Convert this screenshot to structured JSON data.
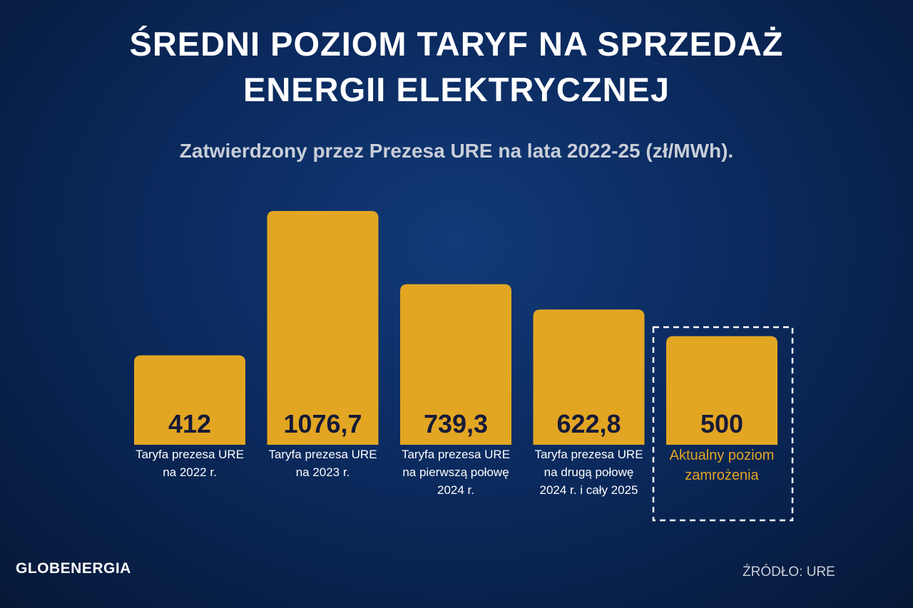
{
  "chart_data": {
    "type": "bar",
    "title": "ŚREDNI POZIOM TARYF NA SPRZEDAŻ ENERGII ELEKTRYCZNEJ",
    "subtitle": "Zatwierdzony przez Prezesa URE na lata 2022-25 (zł/MWh).",
    "categories": [
      "Taryfa prezesa URE na 2022 r.",
      "Taryfa prezesa URE na 2023 r.",
      "Taryfa prezesa URE na pierwszą połowę 2024 r.",
      "Taryfa prezesa URE na drugą połowę 2024 r. i cały 2025",
      "Aktualny poziom zamrożenia"
    ],
    "values": [
      412,
      1076.7,
      739.3,
      622.8,
      500
    ],
    "value_labels": [
      "412",
      "1076,7",
      "739,3",
      "622,8",
      "500"
    ],
    "color": "#e2a623",
    "brand": "GLOBENERGIA",
    "source": "ŹRÓDŁO: URE"
  }
}
